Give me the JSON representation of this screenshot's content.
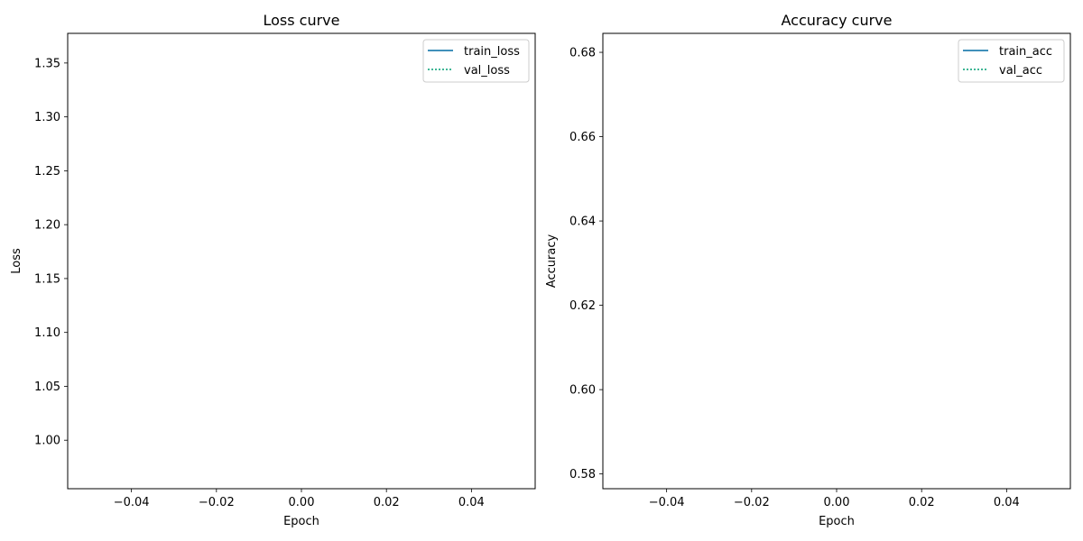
{
  "chart_data": [
    {
      "type": "line",
      "title": "Loss curve",
      "xlabel": "Epoch",
      "ylabel": "Loss",
      "xlim": [
        -0.055,
        0.055
      ],
      "ylim": [
        0.955,
        1.3775
      ],
      "xticks": [
        -0.04,
        -0.02,
        0.0,
        0.02,
        0.04
      ],
      "xtick_labels": [
        "−0.04",
        "−0.02",
        "0.00",
        "0.02",
        "0.04"
      ],
      "yticks": [
        1.0,
        1.05,
        1.1,
        1.15,
        1.2,
        1.25,
        1.3,
        1.35
      ],
      "ytick_labels": [
        "1.00",
        "1.05",
        "1.10",
        "1.15",
        "1.20",
        "1.25",
        "1.30",
        "1.35"
      ],
      "legend_position": "top-right",
      "grid": false,
      "series": [
        {
          "name": "train_loss",
          "color": "#006ba4",
          "style": "solid",
          "x": [],
          "y": []
        },
        {
          "name": "val_loss",
          "color": "#009e73",
          "style": "dotted",
          "x": [],
          "y": []
        }
      ]
    },
    {
      "type": "line",
      "title": "Accuracy curve",
      "xlabel": "Epoch",
      "ylabel": "Accuracy",
      "xlim": [
        -0.055,
        0.055
      ],
      "ylim": [
        0.5765,
        0.6845
      ],
      "xticks": [
        -0.04,
        -0.02,
        0.0,
        0.02,
        0.04
      ],
      "xtick_labels": [
        "−0.04",
        "−0.02",
        "0.00",
        "0.02",
        "0.04"
      ],
      "yticks": [
        0.58,
        0.6,
        0.62,
        0.64,
        0.66,
        0.68
      ],
      "ytick_labels": [
        "0.58",
        "0.60",
        "0.62",
        "0.64",
        "0.66",
        "0.68"
      ],
      "legend_position": "top-right",
      "grid": false,
      "series": [
        {
          "name": "train_acc",
          "color": "#006ba4",
          "style": "solid",
          "x": [],
          "y": []
        },
        {
          "name": "val_acc",
          "color": "#009e73",
          "style": "dotted",
          "x": [],
          "y": []
        }
      ]
    }
  ]
}
